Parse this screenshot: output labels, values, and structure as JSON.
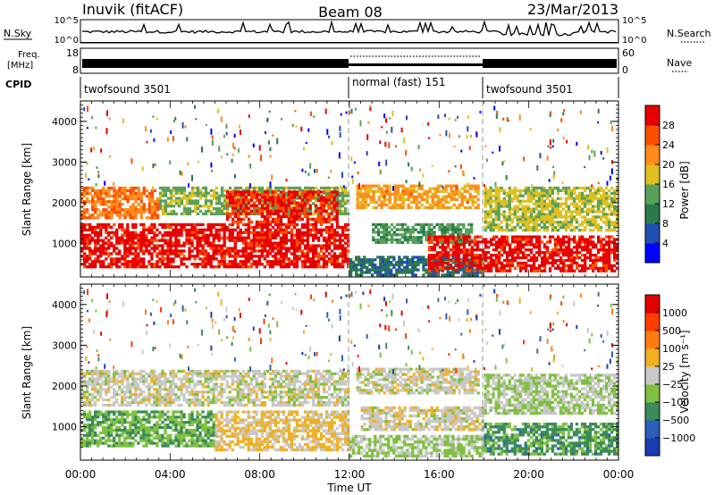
{
  "header": {
    "station": "Inuvik (fitACF)",
    "beam": "Beam 08",
    "date": "23/Mar/2013"
  },
  "left_labels": {
    "nsky": "N.Sky",
    "freq_line1": "Freq.",
    "freq_line2": "[MHz]",
    "cpid": "CPID"
  },
  "right_labels": {
    "nsearch": "N.Search",
    "nave": "Nave"
  },
  "noise_axis": {
    "ticks_left": [
      "10^5",
      "10^0"
    ],
    "ticks_right": [
      "10^5",
      "10^0"
    ]
  },
  "freq_axis": {
    "ticks_left": [
      "18",
      "8"
    ],
    "ticks_right": [
      "60",
      "0"
    ]
  },
  "cpid_segments": [
    {
      "label": "twofsound 3501",
      "start": 0,
      "end": 12
    },
    {
      "label": "normal (fast) 151",
      "start": 12,
      "end": 18
    },
    {
      "label": "twofsound 3501",
      "start": 18,
      "end": 24
    }
  ],
  "x_axis": {
    "label": "Time UT",
    "tick_labels": [
      "00:00",
      "04:00",
      "08:00",
      "12:00",
      "16:00",
      "20:00",
      "00:00"
    ],
    "range_hours": [
      0,
      24
    ]
  },
  "y_axis": {
    "label": "Slant Range [km]",
    "ticks": [
      "1000",
      "2000",
      "3000",
      "4000"
    ],
    "range_km": [
      180,
      4500
    ]
  },
  "power_bar": {
    "title": "Power [dB]",
    "ticks": [
      "28",
      "24",
      "20",
      "16",
      "12",
      "8",
      "4"
    ],
    "colors": [
      "#0000ff",
      "#2050b0",
      "#2a7a4a",
      "#5aa05a",
      "#e0c020",
      "#ff8c1a",
      "#ff4d00",
      "#e80000"
    ]
  },
  "velocity_bar": {
    "title": "Velocity [m s⁻¹]",
    "ticks": [
      "1000",
      "500",
      "100",
      "25",
      "−25",
      "−100",
      "−500",
      "−1000"
    ],
    "colors": [
      "#1a3db0",
      "#2a60b8",
      "#3a8a5a",
      "#80c040",
      "#c8c8c8",
      "#f0b020",
      "#ff7d10",
      "#ff3c00",
      "#e00000"
    ]
  },
  "chart_data": {
    "type": "heatmap",
    "title": "Inuvik (fitACF)  Beam 08  23/Mar/2013",
    "xlabel": "Time UT",
    "ylabel": "Slant Range [km]",
    "xlim_hours": [
      0,
      24
    ],
    "ylim_km": [
      180,
      4500
    ],
    "panels": [
      {
        "name": "Power [dB]",
        "scale": [
          0,
          30
        ],
        "regions": [
          {
            "t0": 0.0,
            "t1": 12.0,
            "r0": 400,
            "r1": 1500,
            "value": 28
          },
          {
            "t0": 0.0,
            "t1": 3.5,
            "r0": 1600,
            "r1": 2400,
            "value": 22
          },
          {
            "t0": 3.5,
            "t1": 12.0,
            "r0": 1700,
            "r1": 2400,
            "value": 14
          },
          {
            "t0": 6.5,
            "t1": 11.5,
            "r0": 1500,
            "r1": 2300,
            "value": 27
          },
          {
            "t0": 12.3,
            "t1": 17.8,
            "r0": 1850,
            "r1": 2450,
            "value": 20
          },
          {
            "t0": 13.0,
            "t1": 17.5,
            "r0": 1000,
            "r1": 1500,
            "value": 12
          },
          {
            "t0": 12.0,
            "t1": 18.0,
            "r0": 200,
            "r1": 700,
            "value": 8
          },
          {
            "t0": 15.5,
            "t1": 24.0,
            "r0": 300,
            "r1": 1200,
            "value": 28
          },
          {
            "t0": 18.0,
            "t1": 24.0,
            "r0": 1300,
            "r1": 2400,
            "value": 16
          }
        ]
      },
      {
        "name": "Velocity [m s-1]",
        "scale": [
          -1000,
          1000
        ],
        "regions": [
          {
            "t0": 0.0,
            "t1": 6.0,
            "r0": 500,
            "r1": 1400,
            "value": -300
          },
          {
            "t0": 6.0,
            "t1": 12.0,
            "r0": 400,
            "r1": 1400,
            "value": 150
          },
          {
            "t0": 0.0,
            "t1": 12.0,
            "r0": 1500,
            "r1": 2400,
            "value": 0
          },
          {
            "t0": 12.3,
            "t1": 17.8,
            "r0": 1800,
            "r1": 2450,
            "value": 0
          },
          {
            "t0": 12.5,
            "t1": 18.0,
            "r0": 900,
            "r1": 1500,
            "value": 20
          },
          {
            "t0": 12.0,
            "t1": 18.0,
            "r0": 250,
            "r1": 800,
            "value": -150
          },
          {
            "t0": 18.0,
            "t1": 24.0,
            "r0": 300,
            "r1": 1100,
            "value": -400
          },
          {
            "t0": 18.0,
            "t1": 24.0,
            "r0": 1300,
            "r1": 2300,
            "value": -100
          }
        ]
      }
    ]
  }
}
